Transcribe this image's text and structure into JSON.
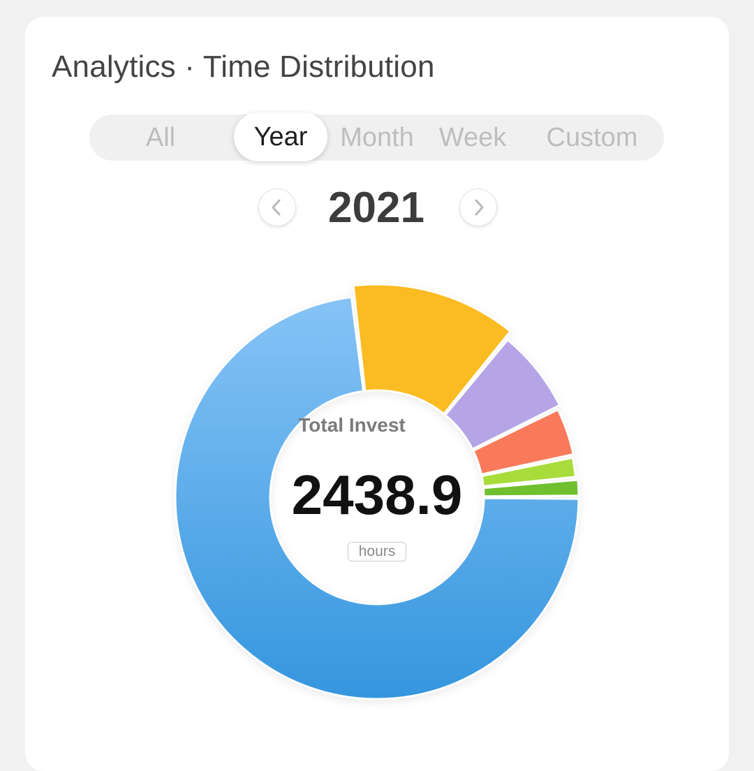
{
  "header": {
    "title": "Analytics · Time Distribution"
  },
  "tabs": [
    {
      "label": "All",
      "active": false
    },
    {
      "label": "Year",
      "active": true
    },
    {
      "label": "Month",
      "active": false
    },
    {
      "label": "Week",
      "active": false
    },
    {
      "label": "Custom",
      "active": false
    }
  ],
  "period": {
    "label": "2021",
    "prev_icon": "chevron-left-icon",
    "next_icon": "chevron-right-icon"
  },
  "summary": {
    "label": "Total Invest",
    "value": "2438.9",
    "unit": "hours"
  },
  "chart_data": {
    "type": "pie",
    "style": "donut",
    "total": 2438.9,
    "slices": [
      {
        "value": 0.015,
        "color": "#6fbf2f"
      },
      {
        "value": 0.018,
        "color": "#a8dc3a"
      },
      {
        "value": 0.04,
        "color": "#f97a5a"
      },
      {
        "value": 0.068,
        "color": "#b5a5e6"
      },
      {
        "value": 0.128,
        "color": "#fbbb21"
      },
      {
        "value": 0.731,
        "color": "#4ba3e8"
      }
    ]
  },
  "colors": {
    "background": "#f1f1f1",
    "card": "#ffffff",
    "accent_blue": "#4ba3e8"
  }
}
